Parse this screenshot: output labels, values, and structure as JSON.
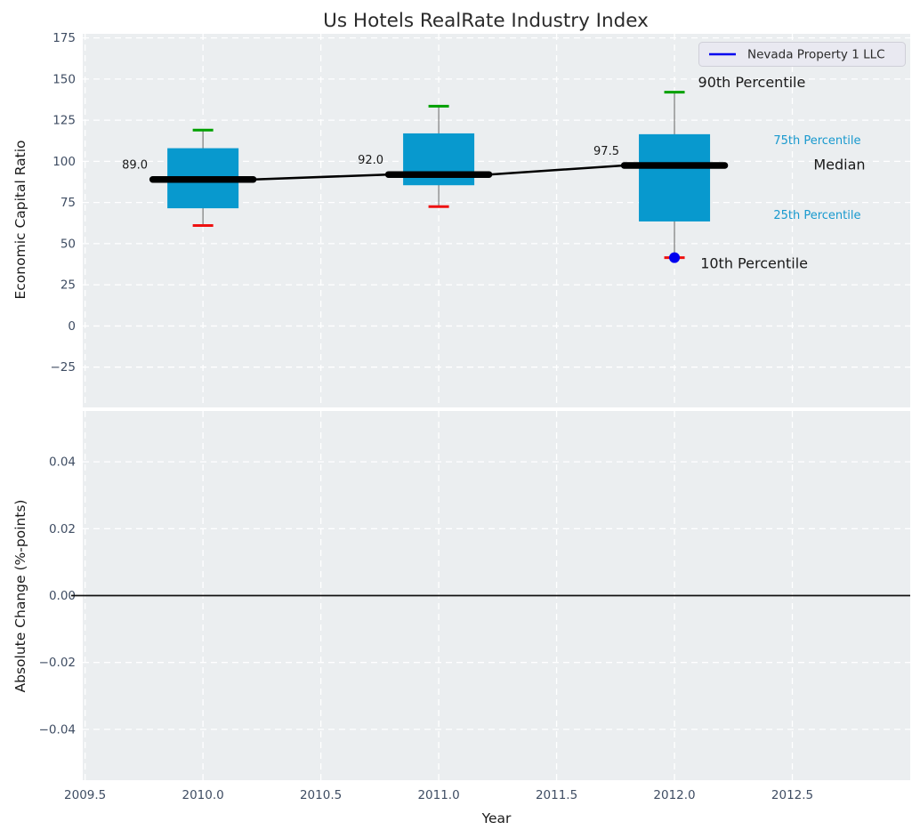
{
  "title": "Us Hotels RealRate Industry Index",
  "xlabel": "Year",
  "legend": {
    "label": "Nevada Property 1 LLC",
    "line_color": "#0000ee"
  },
  "colors": {
    "plot_bg": "#ebeef0",
    "grid": "#ffffff",
    "box_fill": "#0899ce",
    "median_line": "#000000",
    "whisker": "#7a7a7a",
    "cap_high": "#00a000",
    "cap_low": "#ee1111",
    "company_marker": "#0000ee",
    "tick_label": "#3f4d63",
    "annotation_accent": "#1899ce",
    "text_dark": "#1a1a1a",
    "title_color": "#2b2b2b",
    "legend_bg": "#e9e9f1",
    "legend_border": "#cfcfd8"
  },
  "chart_data": [
    {
      "type": "boxplot-timeseries",
      "title": "Us Hotels RealRate Industry Index",
      "ylabel": "Economic Capital Ratio",
      "ylim": [
        -49.5,
        177.5
      ],
      "xlim": [
        2009.49,
        2013.0
      ],
      "grid": true,
      "legend_position": "upper right",
      "yticks": [
        {
          "v": 175,
          "label": "175"
        },
        {
          "v": 150,
          "label": "150"
        },
        {
          "v": 125,
          "label": "125"
        },
        {
          "v": 100,
          "label": "100"
        },
        {
          "v": 75,
          "label": "75"
        },
        {
          "v": 50,
          "label": "50"
        },
        {
          "v": 25,
          "label": "25"
        },
        {
          "v": 0,
          "label": "0"
        },
        {
          "v": -25,
          "label": "−25"
        }
      ],
      "grid_x": [
        2009.5,
        2010.0,
        2010.5,
        2011.0,
        2011.5,
        2012.0,
        2012.5
      ],
      "boxes": [
        {
          "year": 2010,
          "p90": 119,
          "q3": 108,
          "median": 89.0,
          "q1": 71.5,
          "p10": 61,
          "label": "89.0"
        },
        {
          "year": 2011,
          "p90": 133.5,
          "q3": 117,
          "median": 92.0,
          "q1": 85.5,
          "p10": 72.5,
          "label": "92.0"
        },
        {
          "year": 2012,
          "p90": 142,
          "q3": 116.5,
          "median": 97.5,
          "q1": 63.5,
          "p10": 41.5,
          "label": "97.5"
        }
      ],
      "median_trend": {
        "x": [
          2010,
          2011,
          2012
        ],
        "y": [
          89.0,
          92.0,
          97.5
        ]
      },
      "company_point": {
        "name": "Nevada Property 1 LLC",
        "x": 2012,
        "y": 41.5
      },
      "annotations": [
        {
          "text": "90th Percentile",
          "x": 2012.1,
          "y": 148.0,
          "color": "dark",
          "size": 16
        },
        {
          "text": "75th Percentile",
          "x": 2012.42,
          "y": 113.0,
          "color": "accent",
          "size": 13
        },
        {
          "text": "Median",
          "x": 2012.59,
          "y": 98.0,
          "color": "dark",
          "size": 16
        },
        {
          "text": "25th Percentile",
          "x": 2012.42,
          "y": 67.5,
          "color": "accent",
          "size": 13
        },
        {
          "text": "10th Percentile",
          "x": 2012.11,
          "y": 38.0,
          "color": "dark",
          "size": 16
        }
      ]
    },
    {
      "type": "line",
      "ylabel": "Absolute Change (%-points)",
      "ylim": [
        -0.0552,
        0.0552
      ],
      "xlim": [
        2009.49,
        2013.0
      ],
      "grid": true,
      "zero_line": 0.0,
      "series": [],
      "yticks": [
        {
          "v": 0.04,
          "label": "0.04"
        },
        {
          "v": 0.02,
          "label": "0.02"
        },
        {
          "v": 0.0,
          "label": "0.00"
        },
        {
          "v": -0.02,
          "label": "−0.02"
        },
        {
          "v": -0.04,
          "label": "−0.04"
        }
      ],
      "grid_x": [
        2009.5,
        2010.0,
        2010.5,
        2011.0,
        2011.5,
        2012.0,
        2012.5
      ],
      "xticks": [
        {
          "v": 2009.5,
          "label": "2009.5"
        },
        {
          "v": 2010.0,
          "label": "2010.0"
        },
        {
          "v": 2010.5,
          "label": "2010.5"
        },
        {
          "v": 2011.0,
          "label": "2011.0"
        },
        {
          "v": 2011.5,
          "label": "2011.5"
        },
        {
          "v": 2012.0,
          "label": "2012.0"
        },
        {
          "v": 2012.5,
          "label": "2012.5"
        }
      ]
    }
  ]
}
